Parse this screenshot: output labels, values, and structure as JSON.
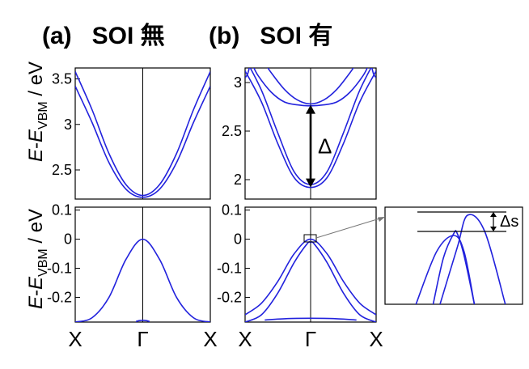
{
  "chart_data": [
    {
      "type": "line",
      "title": "(a)   SOI 無",
      "ylabel_parts": [
        "E",
        "-",
        "E",
        "VBM",
        " / eV"
      ],
      "x_ticks": [
        "X",
        "Γ",
        "X"
      ],
      "subplots": [
        {
          "position": "top",
          "ylim": [
            2.18,
            3.62
          ],
          "y_ticks": [
            2.5,
            3,
            3.5
          ],
          "series": [
            {
              "x": [
                -1,
                -0.75,
                -0.5,
                -0.25,
                0,
                0.25,
                0.5,
                0.75,
                1
              ],
              "values": [
                3.58,
                3.16,
                2.68,
                2.34,
                2.22,
                2.34,
                2.68,
                3.16,
                3.58
              ]
            },
            {
              "x": [
                -1,
                -0.75,
                -0.5,
                -0.25,
                0,
                0.25,
                0.5,
                0.75,
                1
              ],
              "values": [
                3.42,
                3.02,
                2.58,
                2.29,
                2.2,
                2.29,
                2.58,
                3.02,
                3.42
              ]
            }
          ]
        },
        {
          "position": "bottom",
          "ylim": [
            -0.285,
            0.11
          ],
          "y_ticks": [
            0.1,
            0,
            -0.1,
            -0.2
          ],
          "series": [
            {
              "x": [
                -1,
                -0.75,
                -0.5,
                -0.25,
                0,
                0.25,
                0.5,
                0.75,
                1
              ],
              "values": [
                -0.285,
                -0.27,
                -0.2,
                -0.07,
                0,
                -0.07,
                -0.2,
                -0.27,
                -0.285
              ]
            },
            {
              "x": [
                -0.1,
                -0.05,
                0,
                0.05,
                0.1
              ],
              "values": [
                -0.283,
                -0.28,
                -0.279,
                -0.28,
                -0.283
              ]
            }
          ]
        }
      ]
    },
    {
      "type": "line",
      "title": "(b)   SOI 有",
      "x_ticks": [
        "X",
        "Γ",
        "X"
      ],
      "subplots": [
        {
          "position": "top",
          "ylim": [
            1.8,
            3.15
          ],
          "y_ticks": [
            2,
            2.5,
            3
          ],
          "annotation": "Δ",
          "series": [
            {
              "x": [
                -1,
                -0.75,
                -0.5,
                -0.25,
                0,
                0.25,
                0.5,
                0.75,
                1
              ],
              "values": [
                3.25,
                2.92,
                2.48,
                2.08,
                1.95,
                2.08,
                2.48,
                2.92,
                3.25
              ]
            },
            {
              "x": [
                -1,
                -0.75,
                -0.5,
                -0.25,
                0,
                0.25,
                0.5,
                0.75,
                1
              ],
              "values": [
                3.12,
                2.8,
                2.37,
                2.02,
                1.92,
                2.02,
                2.37,
                2.8,
                3.12
              ]
            },
            {
              "x": [
                -0.9,
                -0.8,
                -0.6,
                -0.4,
                -0.2,
                0,
                0.2,
                0.4,
                0.6,
                0.8,
                0.9
              ],
              "values": [
                3.2,
                3.07,
                2.9,
                2.8,
                2.77,
                2.76,
                2.77,
                2.8,
                2.9,
                3.07,
                3.2
              ]
            },
            {
              "x": [
                -0.7,
                -0.6,
                -0.4,
                -0.2,
                0,
                0.2,
                0.4,
                0.6,
                0.7
              ],
              "values": [
                3.2,
                3.1,
                2.93,
                2.82,
                2.78,
                2.82,
                2.93,
                3.1,
                3.2
              ]
            },
            {
              "x": [
                -1,
                -0.96,
                -0.92
              ],
              "values": [
                3.05,
                3.09,
                3.2
              ]
            },
            {
              "x": [
                0.92,
                0.96,
                1
              ],
              "values": [
                3.2,
                3.09,
                3.05
              ]
            }
          ]
        },
        {
          "position": "bottom",
          "ylim": [
            -0.285,
            0.11
          ],
          "y_ticks": [
            0.1,
            0,
            -0.1,
            -0.2
          ],
          "series": [
            {
              "x": [
                -1,
                -0.75,
                -0.5,
                -0.25,
                0,
                0.25,
                0.5,
                0.75,
                1
              ],
              "values": [
                -0.26,
                -0.22,
                -0.145,
                -0.05,
                0,
                -0.05,
                -0.145,
                -0.22,
                -0.26
              ]
            },
            {
              "x": [
                -1,
                -0.75,
                -0.5,
                -0.25,
                -0.05,
                0,
                0.05,
                0.25,
                0.5,
                0.75,
                1
              ],
              "values": [
                -0.285,
                -0.26,
                -0.185,
                -0.08,
                -0.015,
                -0.012,
                -0.015,
                -0.08,
                -0.185,
                -0.26,
                -0.285
              ]
            },
            {
              "x": [
                -0.7,
                -0.35,
                0,
                0.35,
                0.7
              ],
              "values": [
                -0.278,
                -0.273,
                -0.272,
                -0.273,
                -0.278
              ]
            }
          ]
        }
      ]
    }
  ],
  "inset": {
    "annotation": "Δs",
    "series": [
      {
        "x": [
          -0.3,
          -0.15,
          0,
          0.05,
          0.15,
          0.3
        ],
        "values": [
          -1.2,
          -0.05,
          0.55,
          0.55,
          0,
          -1.2
        ]
      },
      {
        "x": [
          -0.55,
          -0.25,
          0,
          0.15,
          0.3
        ],
        "values": [
          -1.2,
          0.1,
          0.5,
          0.1,
          -1.2
        ]
      },
      {
        "x": [
          -0.2,
          0.05,
          0.2,
          0.45,
          0.75
        ],
        "values": [
          -1.2,
          0.2,
          1.0,
          0.6,
          -1.2
        ]
      }
    ]
  }
}
